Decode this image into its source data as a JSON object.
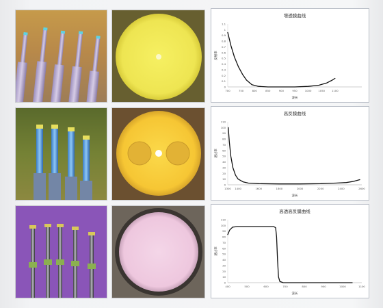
{
  "charts": [
    {
      "title": "增透膜曲线",
      "ylabel": "反射率",
      "xlabel": "波长",
      "xlim": [
        700,
        1200
      ],
      "ylim": [
        0,
        1.1
      ],
      "xticks": [
        700,
        750,
        800,
        850,
        900,
        950,
        1000,
        1050,
        1100
      ],
      "yticks": [
        0,
        0.1,
        0.2,
        0.3,
        0.4,
        0.5,
        0.6,
        0.7,
        0.8,
        0.9,
        1.0,
        1.1
      ],
      "curve": [
        [
          700,
          0.95
        ],
        [
          712,
          0.72
        ],
        [
          725,
          0.52
        ],
        [
          740,
          0.35
        ],
        [
          755,
          0.22
        ],
        [
          770,
          0.12
        ],
        [
          790,
          0.04
        ],
        [
          815,
          0.01
        ],
        [
          850,
          0.0
        ],
        [
          900,
          0.0
        ],
        [
          950,
          0.0
        ],
        [
          1000,
          0.01
        ],
        [
          1040,
          0.03
        ],
        [
          1070,
          0.07
        ],
        [
          1090,
          0.12
        ],
        [
          1100,
          0.15
        ]
      ]
    },
    {
      "title": "高反膜曲线",
      "ylabel": "透过率",
      "xlabel": "波长",
      "xlim": [
        1300,
        2600
      ],
      "ylim": [
        0,
        110
      ],
      "xticks": [
        1300,
        1400,
        1600,
        1800,
        2000,
        2200,
        2400,
        2600
      ],
      "yticks": [
        0,
        10,
        20,
        30,
        40,
        50,
        60,
        70,
        80,
        90,
        100,
        110
      ],
      "curve": [
        [
          1305,
          100
        ],
        [
          1315,
          75
        ],
        [
          1330,
          50
        ],
        [
          1350,
          30
        ],
        [
          1375,
          17
        ],
        [
          1400,
          10
        ],
        [
          1450,
          5
        ],
        [
          1500,
          3
        ],
        [
          1600,
          2
        ],
        [
          1800,
          1.5
        ],
        [
          2000,
          1.5
        ],
        [
          2200,
          2
        ],
        [
          2350,
          3
        ],
        [
          2450,
          4
        ],
        [
          2520,
          6
        ],
        [
          2580,
          9
        ]
      ]
    },
    {
      "title": "高透高反膜曲线",
      "ylabel": "透过率",
      "xlabel": "波长",
      "xlim": [
        400,
        1100
      ],
      "ylim": [
        0,
        110
      ],
      "xticks": [
        400,
        500,
        600,
        700,
        800,
        900,
        1000,
        1100
      ],
      "yticks": [
        0,
        10,
        20,
        30,
        40,
        50,
        60,
        70,
        80,
        90,
        100,
        110
      ],
      "curve": [
        [
          400,
          84
        ],
        [
          410,
          92
        ],
        [
          425,
          97
        ],
        [
          450,
          98
        ],
        [
          500,
          98
        ],
        [
          550,
          98
        ],
        [
          600,
          98
        ],
        [
          640,
          98
        ],
        [
          650,
          96
        ],
        [
          655,
          80
        ],
        [
          660,
          40
        ],
        [
          665,
          10
        ],
        [
          672,
          2
        ],
        [
          690,
          0
        ],
        [
          800,
          0
        ],
        [
          900,
          0
        ],
        [
          1000,
          0
        ],
        [
          1050,
          0
        ]
      ]
    }
  ]
}
